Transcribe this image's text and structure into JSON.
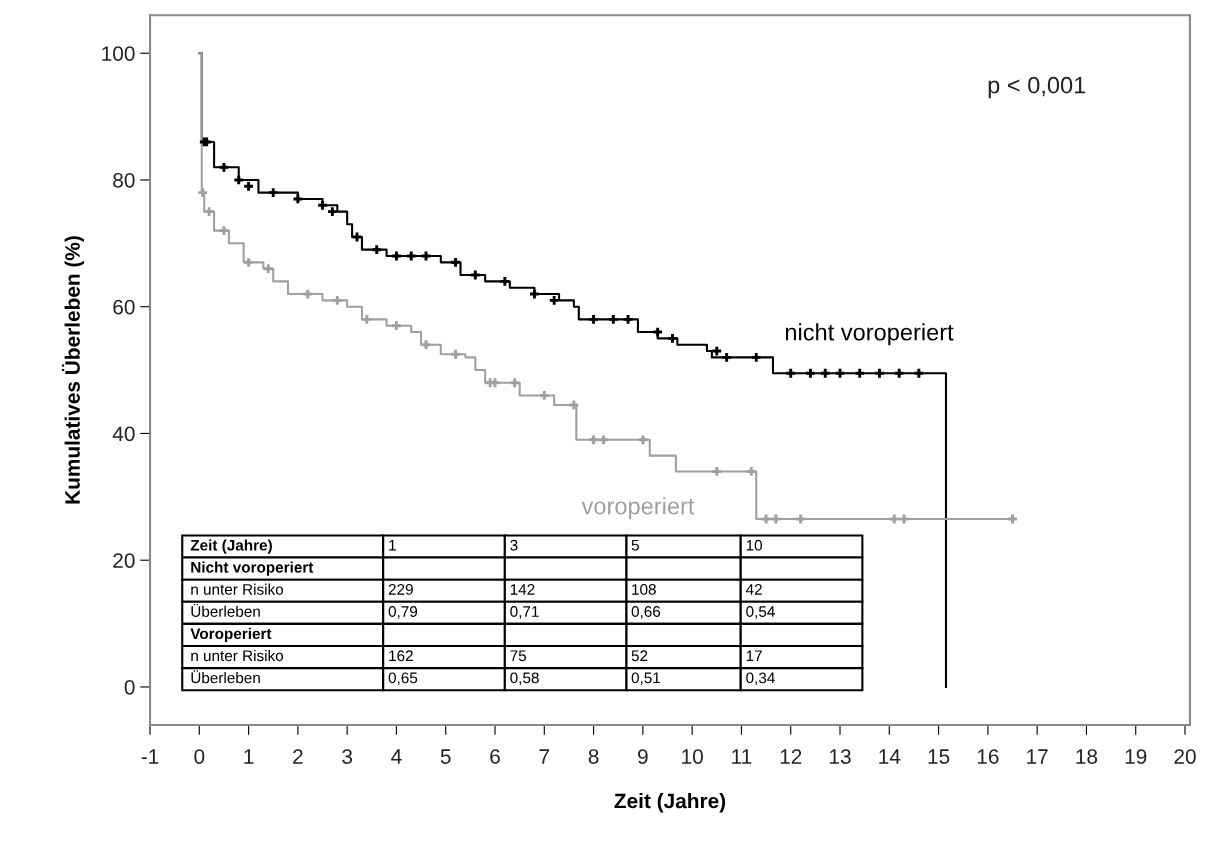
{
  "chart_data": [
    {
      "type": "step",
      "xlabel": "Zeit (Jahre)",
      "ylabel": "Kumulatives Überleben (%)",
      "xlim": [
        -1,
        20.1
      ],
      "xticks": [
        -1,
        0,
        1,
        2,
        3,
        4,
        5,
        6,
        7,
        8,
        9,
        10,
        11,
        12,
        13,
        14,
        15,
        16,
        17,
        18,
        19,
        20
      ],
      "ylim": [
        -6,
        106
      ],
      "yticks": [
        0,
        20,
        40,
        60,
        80,
        100
      ],
      "grid": false,
      "legend": false,
      "annotations": [
        "p < 0,001"
      ],
      "series": [
        {
          "name": "nicht voroperiert",
          "type": "step",
          "color": "#000000",
          "x": [
            0,
            0.05,
            0.3,
            0.8,
            1.2,
            2.0,
            2.5,
            2.8,
            3.0,
            3.1,
            3.3,
            3.8,
            4.9,
            5.3,
            5.8,
            6.3,
            6.8,
            7.3,
            7.6,
            7.7,
            8.9,
            9.3,
            9.7,
            10.3,
            10.4,
            11.64,
            15.15
          ],
          "values": [
            100,
            86,
            82,
            80,
            78,
            77,
            76,
            75,
            73,
            71,
            69,
            68,
            67,
            65,
            64,
            63,
            62,
            61,
            60,
            58,
            56,
            55,
            54,
            53,
            52,
            49.5,
            0
          ]
        },
        {
          "name": "voroperiert",
          "type": "step",
          "color": "#a0a0a0",
          "x": [
            0,
            0.05,
            0.1,
            0.3,
            0.6,
            0.9,
            1.3,
            1.5,
            1.8,
            2.5,
            3.0,
            3.3,
            3.8,
            4.3,
            4.5,
            4.9,
            5.4,
            5.6,
            5.8,
            6.5,
            7.2,
            7.65,
            9.14,
            9.67,
            11.3,
            16.5
          ],
          "values": [
            100,
            78,
            75,
            72,
            70,
            67,
            66,
            64,
            62,
            61,
            60,
            58,
            57,
            56,
            54,
            52.5,
            52,
            50,
            48,
            46,
            44.5,
            39,
            36.5,
            34,
            26.5,
            26.5
          ]
        },
        {
          "type": "scatter",
          "marker": "cross",
          "color": "#000000",
          "x": [
            0.1,
            0.15,
            0.5,
            0.8,
            1.0,
            1.5,
            2.0,
            2.5,
            2.7,
            3.2,
            3.6,
            4.0,
            4.3,
            4.6,
            5.2,
            5.6,
            6.2,
            6.8,
            7.2,
            8.0,
            8.4,
            8.7,
            9.3,
            9.6,
            10.5,
            10.7,
            11.3,
            12.0,
            12.4,
            12.7,
            13.0,
            13.4,
            13.8,
            14.2,
            14.6
          ],
          "values": [
            86,
            86,
            82,
            80,
            79,
            78,
            77,
            76,
            75,
            71,
            69,
            68,
            68,
            68,
            67,
            65,
            64,
            62,
            61,
            58,
            58,
            58,
            56,
            55,
            53,
            52,
            52,
            49.5,
            49.5,
            49.5,
            49.5,
            49.5,
            49.5,
            49.5,
            49.5
          ]
        },
        {
          "type": "scatter",
          "marker": "cross",
          "color": "#a0a0a0",
          "x": [
            0.07,
            0.2,
            0.5,
            1.0,
            1.4,
            2.2,
            2.8,
            3.4,
            4.0,
            4.6,
            5.2,
            5.9,
            6.0,
            6.4,
            7.0,
            7.6,
            8.0,
            8.2,
            9.0,
            10.5,
            11.2,
            11.5,
            11.7,
            12.2,
            14.1,
            14.3,
            16.5
          ],
          "values": [
            78,
            75,
            72,
            67,
            66,
            62,
            61,
            58,
            57,
            54,
            52.5,
            48,
            48,
            48,
            46,
            44.5,
            39,
            39,
            39,
            34,
            34,
            26.5,
            26.5,
            26.5,
            26.5,
            26.5,
            26.5
          ]
        }
      ]
    },
    {
      "type": "other",
      "annotations": [
        "Zeit (Jahre)",
        "1",
        "3",
        "5",
        "10",
        "Nicht voroperiert",
        null,
        null,
        null,
        null,
        "n unter Risiko",
        "229",
        "142",
        "108",
        "42",
        "Überleben",
        "0,79",
        "0,71",
        "0,66",
        "0,54",
        "Voroperiert",
        null,
        null,
        null,
        null,
        "n unter Risiko",
        "162",
        "75",
        "52",
        "17",
        "Überleben",
        "0,65",
        "0,58",
        "0,51",
        "0,34"
      ]
    }
  ]
}
